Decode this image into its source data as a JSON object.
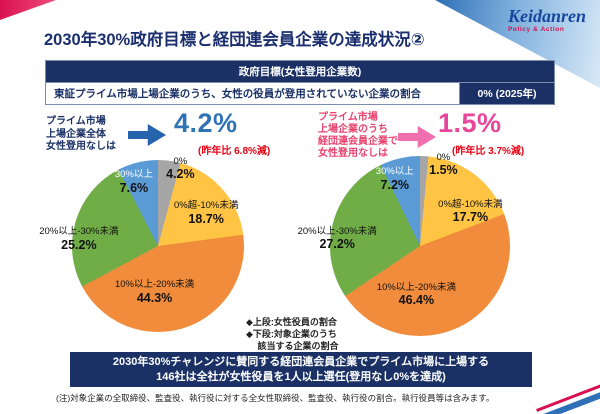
{
  "logo": {
    "wordmark": "Keidanren",
    "tagline": "Policy & Action"
  },
  "title": "2030年30%政府目標と経団連会員企業の達成状況②",
  "gov_table": {
    "header": "政府目標(女性登用企業数)",
    "row_label": "東証プライム市場上場企業のうち、女性の役員が登用されていない企業の割合",
    "row_value": "0% (2025年)"
  },
  "stats": {
    "left": {
      "label": "プライム市場\n上場企業全体\n女性登用なしは",
      "value": "4.2%",
      "delta": "(昨年比 6.8%減)"
    },
    "right": {
      "label": "プライム市場\n上場企業のうち\n経団連会員企業で\n女性登用なしは",
      "value": "1.5%",
      "delta": "(昨年比 3.7%減)"
    }
  },
  "chart_data": [
    {
      "type": "pie",
      "title": "プライム市場上場企業全体(女性役員比率の分布)",
      "start_angle_deg": 0,
      "direction": "clockwise",
      "slices": [
        {
          "label": "0%",
          "value": 4.2,
          "display": "4.2%",
          "color": "#a6a6a6"
        },
        {
          "label": "0%超-10%未満",
          "value": 18.7,
          "display": "18.7%",
          "color": "#ffc443"
        },
        {
          "label": "10%以上-20%未満",
          "value": 44.3,
          "display": "44.3%",
          "color": "#f08c3c"
        },
        {
          "label": "20%以上-30%未満",
          "value": 25.2,
          "display": "25.2%",
          "color": "#70ad47"
        },
        {
          "label": "30%以上",
          "value": 7.6,
          "display": "7.6%",
          "color": "#5b9bd5"
        }
      ]
    },
    {
      "type": "pie",
      "title": "プライム市場上場の経団連会員企業(女性役員比率の分布)",
      "start_angle_deg": 0,
      "direction": "clockwise",
      "slices": [
        {
          "label": "0%",
          "value": 1.5,
          "display": "1.5%",
          "color": "#a6a6a6"
        },
        {
          "label": "0%超-10%未満",
          "value": 17.7,
          "display": "17.7%",
          "color": "#ffc443"
        },
        {
          "label": "10%以上-20%未満",
          "value": 46.4,
          "display": "46.4%",
          "color": "#f08c3c"
        },
        {
          "label": "20%以上-30%未満",
          "value": 27.2,
          "display": "27.2%",
          "color": "#70ad47"
        },
        {
          "label": "30%以上",
          "value": 7.2,
          "display": "7.2%",
          "color": "#5b9bd5"
        }
      ]
    }
  ],
  "legend": {
    "text": "◆上段:女性役員の割合\n◆下段:対象企業のうち\n　 該当する企業の割合"
  },
  "banner": {
    "text": "2030年30%チャレンジに賛同する経団連会員企業でプライム市場に上場する\n146社は全社が女性役員を1人以上選任(登用なし0%を達成)"
  },
  "footnote": "(注)対象企業の全取締役、監査役、執行役に対する全女性取締役、監査役、執行役の割合。執行役員等は含みます。",
  "colors": {
    "navy": "#1b3166",
    "blue_accent": "#2e74b5",
    "pink_accent": "#e8469a",
    "red_accent": "#e60012"
  }
}
